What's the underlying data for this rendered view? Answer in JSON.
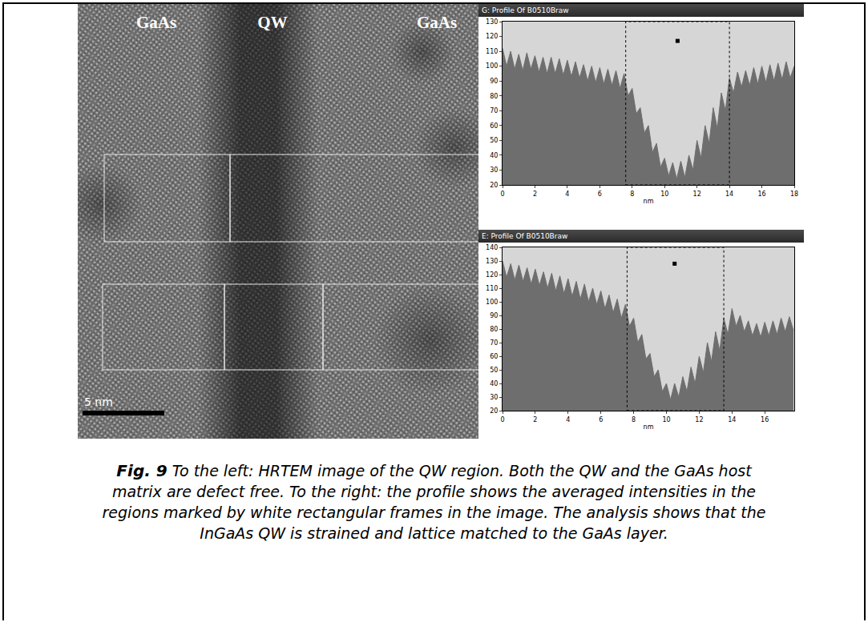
{
  "figure": {
    "image": {
      "labels": [
        "GaAs",
        "QW",
        "GaAs"
      ],
      "scale_bar": "5 nm"
    },
    "caption": {
      "label": "Fig. 9",
      "text": "To the left: HRTEM image of the QW region. Both the QW and the GaAs host matrix are defect free. To the right: the profile shows the averaged intensities in the regions marked by white rectangular frames in the image. The analysis shows that the InGaAs QW is strained and lattice matched to the GaAs layer."
    }
  },
  "chart_data": [
    {
      "type": "area",
      "title": "G: Profile Of B0510Braw",
      "x_label": "nm",
      "color": "#6e6e6e",
      "x": [
        0,
        0.25,
        0.5,
        0.75,
        1,
        1.25,
        1.5,
        1.75,
        2,
        2.25,
        2.5,
        2.75,
        3,
        3.25,
        3.5,
        3.75,
        4,
        4.25,
        4.5,
        4.75,
        5,
        5.25,
        5.5,
        5.75,
        6,
        6.25,
        6.5,
        6.75,
        7,
        7.25,
        7.5,
        7.75,
        8,
        8.25,
        8.5,
        8.75,
        9,
        9.25,
        9.5,
        9.75,
        10,
        10.25,
        10.5,
        10.75,
        11,
        11.25,
        11.5,
        11.75,
        12,
        12.25,
        12.5,
        12.75,
        13,
        13.25,
        13.5,
        13.75,
        14,
        14.25,
        14.5,
        14.75,
        15,
        15.25,
        15.5,
        15.75,
        16,
        16.25,
        16.5,
        16.75,
        17,
        17.25,
        17.5,
        17.75,
        18
      ],
      "values": [
        112,
        100,
        110,
        98,
        108,
        97,
        109,
        98,
        107,
        96,
        106,
        95,
        106,
        95,
        105,
        94,
        104,
        93,
        103,
        92,
        101,
        90,
        100,
        89,
        99,
        88,
        98,
        87,
        97,
        85,
        95,
        80,
        85,
        68,
        72,
        55,
        60,
        42,
        48,
        32,
        38,
        26,
        35,
        24,
        36,
        25,
        40,
        30,
        50,
        38,
        60,
        48,
        72,
        58,
        82,
        70,
        92,
        82,
        96,
        86,
        97,
        87,
        99,
        88,
        100,
        89,
        101,
        90,
        102,
        91,
        103,
        92,
        100
      ],
      "xlim": [
        0,
        18
      ],
      "xticks": [
        0,
        2,
        4,
        6,
        8,
        10,
        12,
        14,
        16,
        18
      ],
      "ylim": [
        20,
        130
      ],
      "yticks": [
        20,
        30,
        40,
        50,
        60,
        70,
        80,
        90,
        100,
        110,
        120,
        130
      ],
      "selection": [
        7.6,
        14
      ],
      "marker_point": [
        10.8,
        117
      ]
    },
    {
      "type": "area",
      "title": "E: Profile Of B0510Braw",
      "x_label": "nm",
      "color": "#6e6e6e",
      "x": [
        0,
        0.25,
        0.5,
        0.75,
        1,
        1.25,
        1.5,
        1.75,
        2,
        2.25,
        2.5,
        2.75,
        3,
        3.25,
        3.5,
        3.75,
        4,
        4.25,
        4.5,
        4.75,
        5,
        5.25,
        5.5,
        5.75,
        6,
        6.25,
        6.5,
        6.75,
        7,
        7.25,
        7.5,
        7.75,
        8,
        8.25,
        8.5,
        8.75,
        9,
        9.25,
        9.5,
        9.75,
        10,
        10.25,
        10.5,
        10.75,
        11,
        11.25,
        11.5,
        11.75,
        12,
        12.25,
        12.5,
        12.75,
        13,
        13.25,
        13.5,
        13.75,
        14,
        14.25,
        14.5,
        14.75,
        15,
        15.25,
        15.5,
        15.75,
        16,
        16.25,
        16.5,
        16.75,
        17,
        17.25,
        17.5,
        17.75
      ],
      "values": [
        130,
        118,
        128,
        116,
        127,
        115,
        125,
        113,
        124,
        112,
        122,
        110,
        121,
        108,
        119,
        106,
        117,
        104,
        115,
        102,
        113,
        100,
        110,
        98,
        108,
        95,
        105,
        92,
        102,
        88,
        98,
        82,
        88,
        70,
        76,
        58,
        62,
        45,
        50,
        34,
        40,
        28,
        40,
        30,
        45,
        34,
        52,
        40,
        60,
        48,
        70,
        56,
        78,
        64,
        88,
        76,
        95,
        82,
        90,
        78,
        86,
        75,
        84,
        74,
        85,
        75,
        86,
        76,
        88,
        78,
        89,
        79
      ],
      "xlim": [
        0,
        17.8
      ],
      "xticks": [
        0,
        2,
        4,
        6,
        8,
        10,
        12,
        14,
        16
      ],
      "ylim": [
        20,
        140
      ],
      "yticks": [
        20,
        30,
        40,
        50,
        60,
        70,
        80,
        90,
        100,
        110,
        120,
        130,
        140
      ],
      "selection": [
        7.6,
        13.5
      ],
      "marker_point": [
        10.5,
        128
      ]
    }
  ]
}
